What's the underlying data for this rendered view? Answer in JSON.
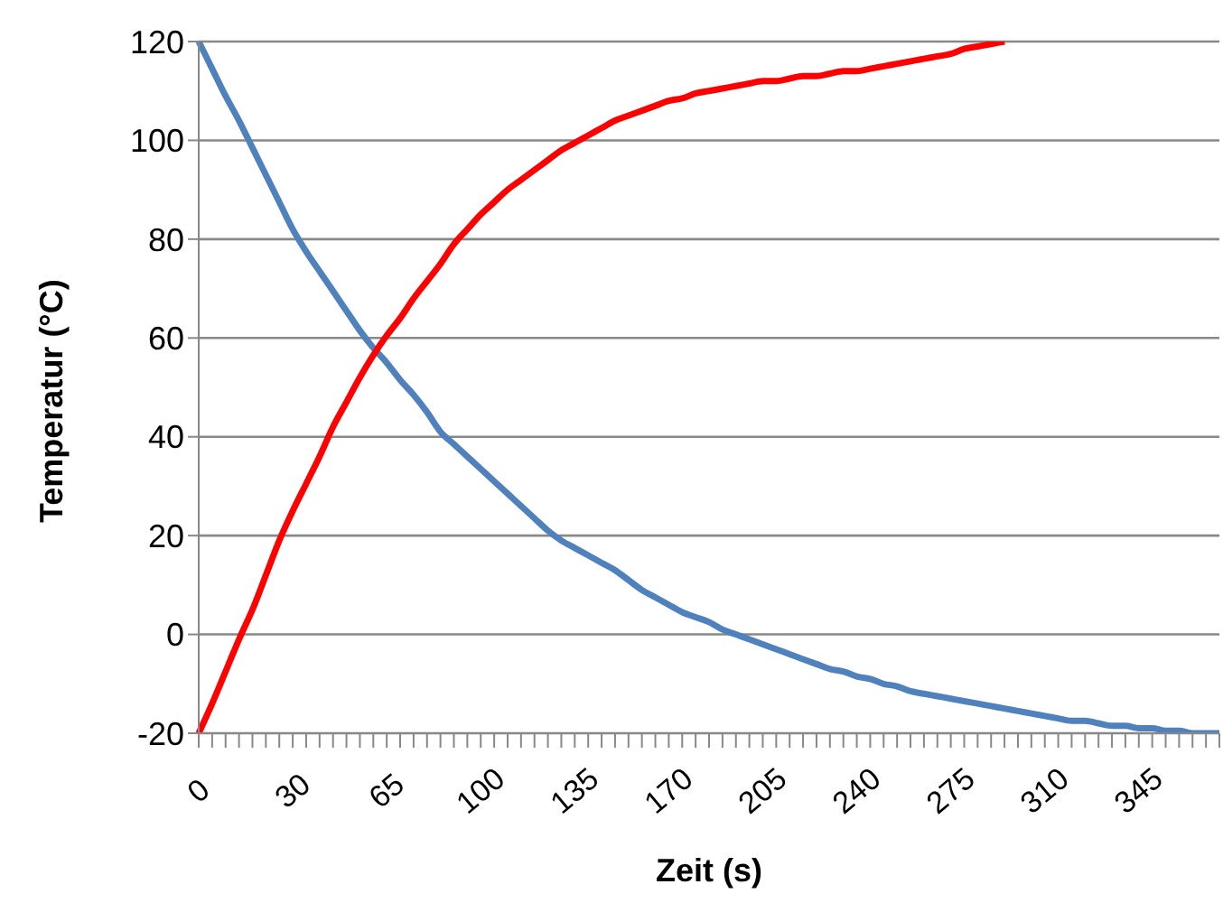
{
  "chart_data": {
    "type": "line",
    "xlabel": "Zeit (s)",
    "ylabel": "Temperatur (°C)",
    "categories": [
      "0",
      null,
      null,
      null,
      null,
      null,
      null,
      "30",
      null,
      null,
      null,
      null,
      null,
      null,
      "65",
      null,
      null,
      null,
      null,
      null,
      null,
      "100",
      null,
      null,
      null,
      null,
      null,
      null,
      "135",
      null,
      null,
      null,
      null,
      null,
      null,
      "170",
      null,
      null,
      null,
      null,
      null,
      null,
      "205",
      null,
      null,
      null,
      null,
      null,
      null,
      "240",
      null,
      null,
      null,
      null,
      null,
      null,
      "275",
      null,
      null,
      null,
      null,
      null,
      null,
      "310",
      null,
      null,
      null,
      null,
      null,
      null,
      "345",
      null,
      null,
      null,
      null,
      null,
      null
    ],
    "series": [
      {
        "color": "#4f81bd",
        "values": [
          120,
          114.5,
          109,
          104,
          98.5,
          93,
          87.5,
          82,
          77.5,
          73.5,
          69.5,
          65.5,
          61.5,
          58,
          55,
          51.5,
          48.5,
          45,
          41,
          38.5,
          36,
          33.5,
          31,
          28.5,
          26,
          23.5,
          21,
          19,
          17.5,
          16,
          14.5,
          13,
          11,
          9,
          7.5,
          6,
          4.5,
          3.5,
          2.5,
          1,
          0,
          -1,
          -2,
          -3,
          -4,
          -5,
          -6,
          -7,
          -7.5,
          -8.5,
          -9,
          -10,
          -10.5,
          -11.5,
          -12,
          -12.5,
          -13,
          -13.5,
          -14,
          -14.5,
          -15,
          -15.5,
          -16,
          -16.5,
          -17,
          -17.5,
          -17.5,
          -18,
          -18.5,
          -18.5,
          -19,
          -19,
          -19.5,
          -19.5,
          -20,
          -20,
          -20
        ]
      },
      {
        "color": "#ff0000",
        "values": [
          -20,
          -14,
          -7.5,
          -1,
          5,
          12,
          19,
          25,
          30.5,
          36,
          42,
          47,
          52,
          56.5,
          60.5,
          64,
          68,
          71.5,
          75,
          79,
          82,
          85,
          87.5,
          90,
          92,
          94,
          96,
          98,
          99.5,
          101,
          102.5,
          104,
          105,
          106,
          107,
          108,
          108.5,
          109.5,
          110,
          110.5,
          111,
          111.5,
          112,
          112,
          112.5,
          113,
          113,
          113.5,
          114,
          114,
          114.5,
          115,
          115.5,
          116,
          116.5,
          117,
          117.5,
          118.5,
          119,
          119.5,
          120,
          null,
          null,
          null,
          null,
          null,
          null,
          null,
          null,
          null,
          null,
          null,
          null,
          null,
          null,
          null,
          null
        ]
      }
    ],
    "ylim": [
      -20,
      120
    ],
    "yticks": [
      -20,
      0,
      20,
      40,
      60,
      80,
      100,
      120
    ],
    "grid": "y",
    "marker": "none",
    "line_style": "solid",
    "legend": false
  }
}
